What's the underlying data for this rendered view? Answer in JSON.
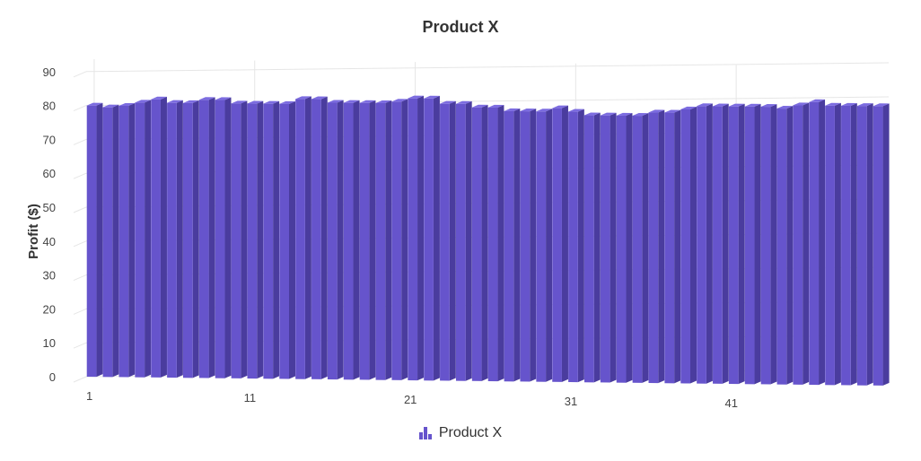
{
  "colors": {
    "bar_front": "#6654cc",
    "bar_top": "#7c6ce0",
    "bar_side": "#4a3c9e",
    "grid": "#e6e6e6",
    "text": "#333333",
    "tick": "#444444"
  },
  "chart_data": {
    "type": "bar",
    "title": "Product X",
    "xlabel": "",
    "ylabel": "Profit ($)",
    "ylim": [
      0,
      90
    ],
    "yticks": [
      0,
      10,
      20,
      30,
      40,
      50,
      60,
      70,
      80,
      90
    ],
    "xticks": [
      1,
      11,
      21,
      31,
      41
    ],
    "grid": true,
    "legend": "bottom-center",
    "series": [
      {
        "name": "Product X",
        "x": [
          1,
          2,
          3,
          4,
          5,
          6,
          7,
          8,
          9,
          10,
          11,
          12,
          13,
          14,
          15,
          16,
          17,
          18,
          19,
          20,
          21,
          22,
          23,
          24,
          25,
          26,
          27,
          28,
          29,
          30,
          31,
          32,
          33,
          34,
          35,
          36,
          37,
          38,
          39,
          40,
          41,
          42,
          43,
          44,
          45,
          46,
          47,
          48,
          49,
          50
        ],
        "values": [
          80,
          79.5,
          80,
          81,
          82,
          81,
          81,
          82,
          82,
          81,
          81,
          81,
          81,
          82.5,
          82.5,
          81.5,
          81.5,
          81.5,
          81.5,
          82,
          83,
          83,
          81.5,
          81.5,
          80.5,
          80.5,
          79.5,
          79.5,
          79.5,
          80.5,
          79.5,
          78.5,
          78.5,
          78.5,
          78.5,
          79.5,
          79.5,
          80.5,
          81.5,
          81.5,
          81.5,
          81.5,
          81.5,
          81,
          82,
          83,
          82,
          82,
          82,
          82
        ]
      }
    ]
  }
}
